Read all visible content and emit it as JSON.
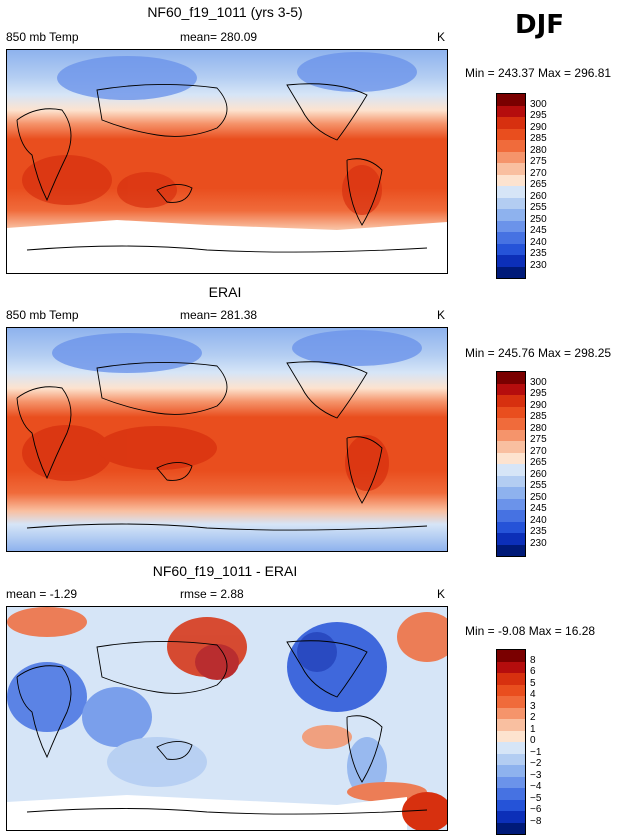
{
  "season": "DJF",
  "panels": [
    {
      "id": "model",
      "title": "NF60_f19_1011 (yrs 3-5)",
      "left_label": "850 mb Temp",
      "center_label": "mean= 280.09",
      "units": "K",
      "minmax": "Min = 243.37 Max = 296.81",
      "type": "abs"
    },
    {
      "id": "obs",
      "title": "ERAI",
      "left_label": "850 mb Temp",
      "center_label": "mean= 281.38",
      "units": "K",
      "minmax": "Min = 245.76 Max = 298.25",
      "type": "abs"
    },
    {
      "id": "diff",
      "title": "NF60_f19_1011 - ERAI",
      "left_label": "mean =  -1.29",
      "center_label": "rmse =  2.88",
      "units": "K",
      "minmax": "Min =  -9.08 Max =  16.28",
      "type": "diff"
    }
  ],
  "colorbars": {
    "abs": {
      "levels": [
        "300",
        "295",
        "290",
        "285",
        "280",
        "275",
        "270",
        "265",
        "260",
        "255",
        "250",
        "245",
        "240",
        "235",
        "230"
      ],
      "colors": [
        "#7a0000",
        "#b50d0d",
        "#d7300f",
        "#e94e1e",
        "#f06b3b",
        "#f5946b",
        "#f9bfa0",
        "#fde3cf",
        "#d6e5f7",
        "#b3cdf2",
        "#8eb2ee",
        "#6b93ea",
        "#4672e2",
        "#2553d8",
        "#0c2fb8",
        "#001a78"
      ]
    },
    "diff": {
      "levels": [
        "8",
        "6",
        "5",
        "4",
        "3",
        "2",
        "1",
        "0",
        "−1",
        "−2",
        "−3",
        "−4",
        "−5",
        "−6",
        "−8"
      ],
      "colors": [
        "#7a0000",
        "#b50d0d",
        "#d7300f",
        "#e94e1e",
        "#f06b3b",
        "#f5946b",
        "#f9bfa0",
        "#fde3cf",
        "#d6e5f7",
        "#b3cdf2",
        "#8eb2ee",
        "#6b93ea",
        "#4672e2",
        "#2553d8",
        "#0c2fb8",
        "#001a78"
      ]
    }
  }
}
